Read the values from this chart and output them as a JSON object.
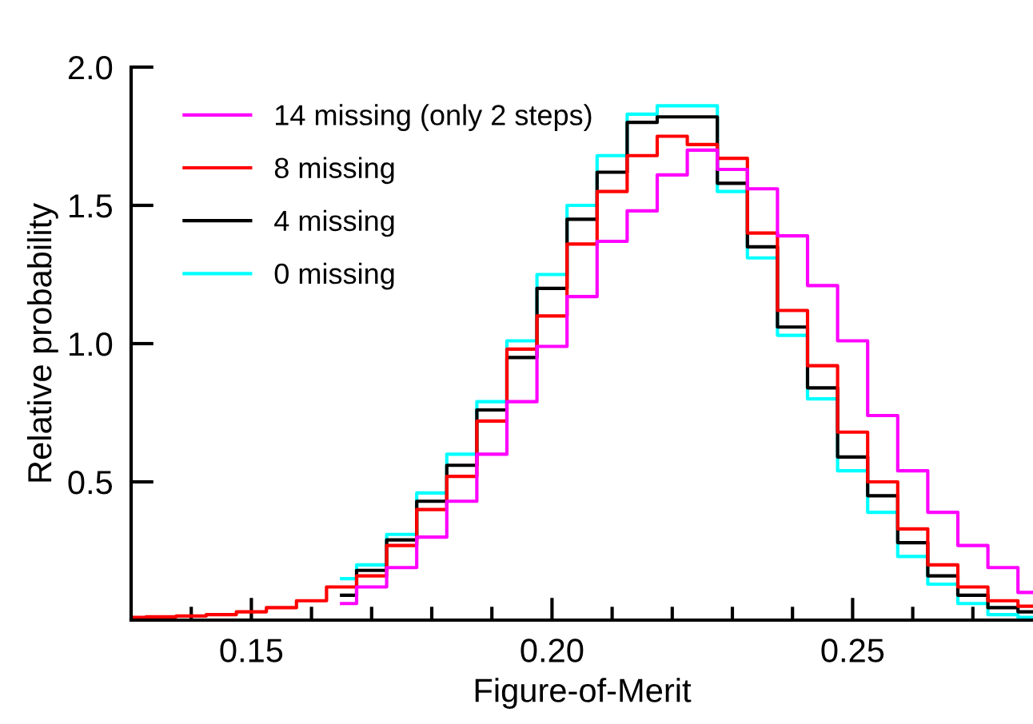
{
  "chart_data": {
    "type": "step",
    "xlabel": "Figure-of-Merit",
    "ylabel": "Relative probability",
    "x": [
      0.13,
      0.135,
      0.14,
      0.145,
      0.15,
      0.155,
      0.16,
      0.165,
      0.17,
      0.175,
      0.18,
      0.185,
      0.19,
      0.195,
      0.2,
      0.205,
      0.21,
      0.215,
      0.22,
      0.225,
      0.23,
      0.235,
      0.24,
      0.245,
      0.25,
      0.255,
      0.26,
      0.265,
      0.27,
      0.275,
      0.28
    ],
    "series": [
      {
        "name": "14 missing (only 2 steps)",
        "color": "#ff00ff",
        "x": [
          0.165,
          0.17,
          0.175,
          0.18,
          0.185,
          0.19,
          0.195,
          0.2,
          0.205,
          0.21,
          0.215,
          0.22,
          0.225,
          0.23,
          0.235,
          0.24,
          0.245,
          0.25,
          0.255,
          0.26,
          0.265,
          0.27,
          0.275,
          0.28
        ],
        "values": [
          0.06,
          0.12,
          0.19,
          0.3,
          0.43,
          0.6,
          0.79,
          0.99,
          1.17,
          1.37,
          1.48,
          1.61,
          1.7,
          1.63,
          1.56,
          1.39,
          1.21,
          1.01,
          0.74,
          0.54,
          0.39,
          0.27,
          0.19,
          0.1
        ]
      },
      {
        "name": "8 missing",
        "color": "#ff0000",
        "values": [
          0.01,
          0.012,
          0.015,
          0.02,
          0.03,
          0.045,
          0.07,
          0.12,
          0.16,
          0.27,
          0.4,
          0.52,
          0.72,
          0.98,
          1.1,
          1.36,
          1.55,
          1.68,
          1.75,
          1.72,
          1.67,
          1.4,
          1.12,
          0.92,
          0.68,
          0.5,
          0.33,
          0.2,
          0.12,
          0.07,
          0.05
        ]
      },
      {
        "name": "4 missing",
        "color": "#000000",
        "x": [
          0.165,
          0.17,
          0.175,
          0.18,
          0.185,
          0.19,
          0.195,
          0.2,
          0.205,
          0.21,
          0.215,
          0.22,
          0.225,
          0.23,
          0.235,
          0.24,
          0.245,
          0.25,
          0.255,
          0.26,
          0.265,
          0.27,
          0.275,
          0.28
        ],
        "values": [
          0.09,
          0.18,
          0.29,
          0.43,
          0.56,
          0.76,
          0.95,
          1.2,
          1.45,
          1.62,
          1.8,
          1.82,
          1.82,
          1.58,
          1.35,
          1.06,
          0.84,
          0.59,
          0.45,
          0.28,
          0.16,
          0.09,
          0.045,
          0.03
        ]
      },
      {
        "name": "0 missing",
        "color": "#00ffff",
        "x": [
          0.165,
          0.17,
          0.175,
          0.18,
          0.185,
          0.19,
          0.195,
          0.2,
          0.205,
          0.21,
          0.215,
          0.22,
          0.225,
          0.23,
          0.235,
          0.24,
          0.245,
          0.25,
          0.255,
          0.26,
          0.265,
          0.27,
          0.275,
          0.28
        ],
        "values": [
          0.15,
          0.2,
          0.31,
          0.46,
          0.6,
          0.79,
          1.01,
          1.25,
          1.5,
          1.68,
          1.83,
          1.86,
          1.86,
          1.55,
          1.31,
          1.03,
          0.8,
          0.54,
          0.39,
          0.23,
          0.13,
          0.06,
          0.02,
          0.01
        ]
      }
    ],
    "xlim": [
      0.13,
      0.28
    ],
    "ylim": [
      0,
      2.0
    ],
    "xticks": [
      {
        "value": 0.14,
        "label": null
      },
      {
        "value": 0.15,
        "label": "0.15"
      },
      {
        "value": 0.16,
        "label": null
      },
      {
        "value": 0.17,
        "label": null
      },
      {
        "value": 0.18,
        "label": null
      },
      {
        "value": 0.19,
        "label": null
      },
      {
        "value": 0.2,
        "label": "0.20"
      },
      {
        "value": 0.21,
        "label": null
      },
      {
        "value": 0.22,
        "label": null
      },
      {
        "value": 0.23,
        "label": null
      },
      {
        "value": 0.24,
        "label": null
      },
      {
        "value": 0.25,
        "label": "0.25"
      },
      {
        "value": 0.26,
        "label": null
      },
      {
        "value": 0.27,
        "label": null
      }
    ],
    "yticks": [
      {
        "value": 0.5,
        "label": "0.5"
      },
      {
        "value": 1.0,
        "label": "1.0"
      },
      {
        "value": 1.5,
        "label": "1.5"
      },
      {
        "value": 2.0,
        "label": "2.0"
      }
    ],
    "legend": "top left",
    "grid": false,
    "line_style": "solid",
    "marker": "none"
  }
}
